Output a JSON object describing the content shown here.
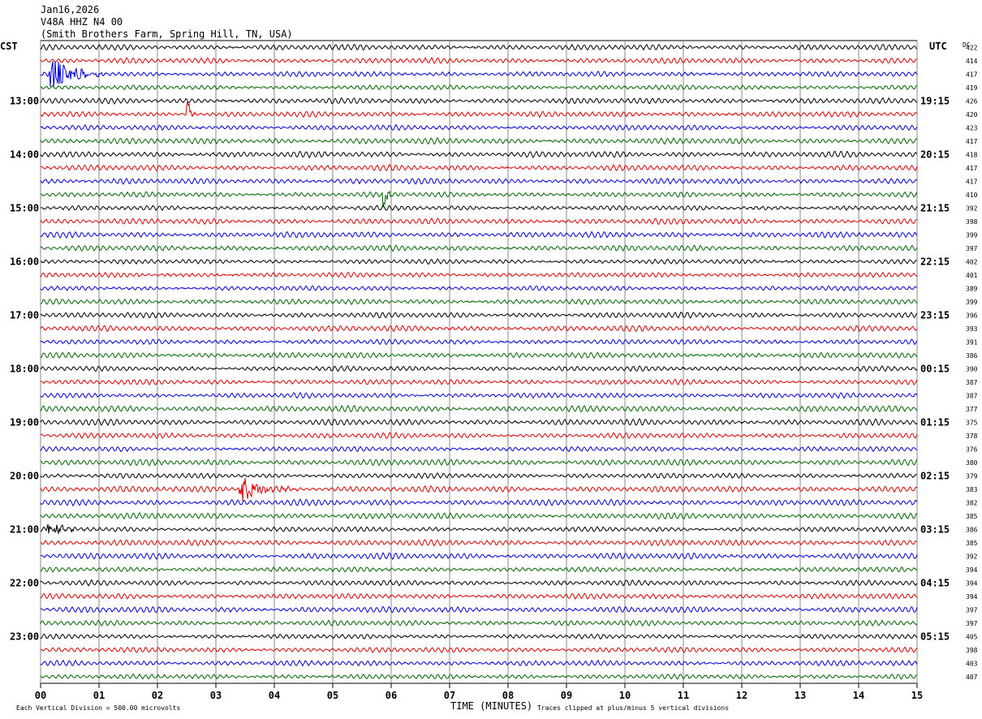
{
  "header": {
    "date": "Jan16,2026",
    "station": "V48A HHZ N4 00",
    "location": "(Smith Brothers Farm, Spring Hill, TN, USA)"
  },
  "chart_data": {
    "type": "line",
    "title": "Jan16,2026",
    "subtitle": "V48A HHZ N4 00 (Smith Brothers Farm, Spring Hill, TN, USA)",
    "left_timezone": "CST",
    "right_timezone": "UTC",
    "dc_label": "DC",
    "xlabel": "TIME (MINUTES)",
    "x_ticks": [
      "00",
      "01",
      "02",
      "03",
      "04",
      "05",
      "06",
      "07",
      "08",
      "09",
      "10",
      "11",
      "12",
      "13",
      "14",
      "15"
    ],
    "xlim": [
      0,
      15
    ],
    "left_hour_labels": [
      "13:00",
      "14:00",
      "15:00",
      "16:00",
      "17:00",
      "18:00",
      "19:00",
      "20:00",
      "21:00",
      "22:00",
      "23:00"
    ],
    "right_hour_labels": [
      "19:15",
      "20:15",
      "21:15",
      "22:15",
      "23:15",
      "00:15",
      "01:15",
      "02:15",
      "03:15",
      "04:15",
      "05:15"
    ],
    "first_labeled_row": 4,
    "rows_per_hour": 4,
    "trace_colors": [
      "#000000",
      "#dd0000",
      "#0000dd",
      "#006600"
    ],
    "dc_offsets": [
      422,
      414,
      417,
      419,
      426,
      420,
      423,
      417,
      418,
      417,
      417,
      410,
      392,
      398,
      399,
      397,
      402,
      401,
      389,
      399,
      396,
      393,
      391,
      386,
      390,
      387,
      387,
      377,
      375,
      378,
      376,
      380,
      379,
      383,
      382,
      385,
      386,
      385,
      392,
      394,
      394,
      394,
      397,
      397,
      405,
      398,
      403,
      407
    ],
    "events": [
      {
        "row": 2,
        "minute": 0.15,
        "amplitude": 3.0,
        "duration": 1.0
      },
      {
        "row": 5,
        "minute": 2.5,
        "amplitude": 3.0,
        "duration": 0.15
      },
      {
        "row": 11,
        "minute": 5.85,
        "amplitude": 4.0,
        "duration": 0.15
      },
      {
        "row": 33,
        "minute": 3.4,
        "amplitude": 2.0,
        "duration": 1.0
      },
      {
        "row": 36,
        "minute": 0.1,
        "amplitude": 1.0,
        "duration": 0.7
      }
    ],
    "footer_left": "Each Vertical Division = 500.00 microvolts",
    "footer_right": "Traces clipped at plus/minus 5 vertical divisions"
  }
}
